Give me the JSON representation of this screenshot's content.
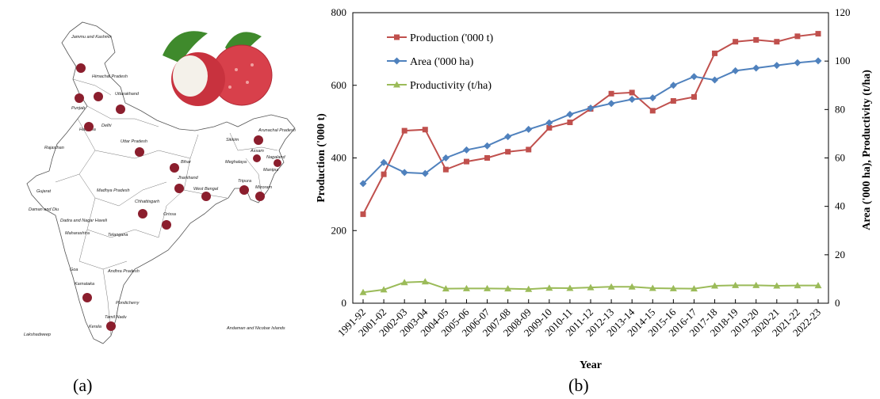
{
  "panel_labels": {
    "a": "(a)",
    "b": "(b)"
  },
  "map": {
    "state_labels": [
      "Jammu and Kashmir",
      "Himachal Pradesh",
      "Punjab",
      "Uttarakhand",
      "Haryana",
      "Delhi",
      "Rajasthan",
      "Uttar Pradesh",
      "Sikkim",
      "Arunachal Pradesh",
      "Assam",
      "Nagaland",
      "Meghalaya",
      "Manipur",
      "Bihar",
      "Gujarat",
      "Madhya Pradesh",
      "Jharkhand",
      "West Bengal",
      "Tripura",
      "Mizoram",
      "Chhattisgarh",
      "Orissa",
      "Maharashtra",
      "Daman and Diu",
      "Dadra and Nagar Haveli",
      "Telangana",
      "Goa",
      "Andhra Pradesh",
      "Karnataka",
      "Pondicherry",
      "Tamil Nadu",
      "Kerala",
      "Lakshadweep",
      "Andaman and Nicobar Islands"
    ],
    "fruit_marker_color": "#8b1e2d",
    "photo_colors": {
      "skin": "#d8404b",
      "flesh": "#f4f1ea",
      "leaf": "#3f8a2c"
    }
  },
  "chart_data": {
    "type": "line",
    "categories": [
      "1991-92",
      "2001-02",
      "2002-03",
      "2003-04",
      "2004-05",
      "2005-06",
      "2006-07",
      "2007-08",
      "2008-09",
      "2009-10",
      "2010-11",
      "2011-12",
      "2012-13",
      "2013-14",
      "2014-15",
      "2015-16",
      "2016-17",
      "2017-18",
      "2018-19",
      "2019-20",
      "2020-21",
      "2021-22",
      "2022-23"
    ],
    "series": [
      {
        "name": "Production ('000 t)",
        "axis": "left",
        "color": "#c0504d",
        "marker": "square",
        "values": [
          245,
          355,
          475,
          478,
          368,
          390,
          400,
          417,
          423,
          483,
          498,
          535,
          577,
          580,
          530,
          557,
          568,
          688,
          720,
          725,
          720,
          735,
          742
        ]
      },
      {
        "name": "Area ('000 ha)",
        "axis": "right",
        "color": "#4f81bd",
        "marker": "diamond",
        "values": [
          49.4,
          58.1,
          54.0,
          53.6,
          60.0,
          63.3,
          65.0,
          68.8,
          71.8,
          74.5,
          78.0,
          80.6,
          82.5,
          84.2,
          84.8,
          90.0,
          93.6,
          92.2,
          96.0,
          97.1,
          98.2,
          99.3,
          100.1
        ]
      },
      {
        "name": "Productivity (t/ha)",
        "axis": "right",
        "color": "#9bbb59",
        "marker": "triangle",
        "values": [
          4.5,
          5.6,
          8.6,
          8.9,
          6.0,
          6.1,
          6.1,
          6.0,
          5.8,
          6.3,
          6.2,
          6.5,
          6.8,
          6.8,
          6.2,
          6.1,
          6.0,
          7.2,
          7.4,
          7.4,
          7.2,
          7.3,
          7.3
        ]
      }
    ],
    "xlabel": "Year",
    "ylabel": "Production ('000 t)",
    "y2label": "Area ('000 ha), Productivity (t/ha)",
    "ylim": [
      0,
      800
    ],
    "y2lim": [
      0,
      120
    ],
    "yticks": [
      0,
      200,
      400,
      600,
      800
    ],
    "y2ticks": [
      0,
      20,
      40,
      60,
      80,
      100,
      120
    ],
    "legend_position": "top-left",
    "grid": false
  }
}
